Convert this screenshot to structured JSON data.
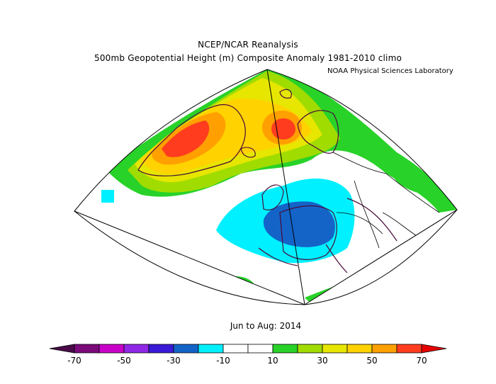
{
  "title_line1": "NCEP/NCAR Reanalysis",
  "title_line2": "500mb Geopotential Height (m) Composite Anomaly 1981-2010 climo",
  "credit": "NOAA Physical Sciences Laboratory",
  "period": "Jun to Aug: 2014",
  "colorbar": {
    "colors": [
      "#7a0a7a",
      "#c800c8",
      "#9028e6",
      "#3a1ad6",
      "#1464c8",
      "#00f0ff",
      "#ffffff",
      "#ffffff",
      "#28d228",
      "#a0dc00",
      "#e6e600",
      "#ffd200",
      "#ffa000",
      "#ff3c1e"
    ],
    "low_cap_color": "#4a0a4a",
    "high_cap_color": "#e60000",
    "tick_labels": [
      "-70",
      "-50",
      "-30",
      "-10",
      "10",
      "30",
      "50",
      "70"
    ]
  },
  "colors": {
    "coast": "#4a0a3a",
    "border": "#000000"
  }
}
